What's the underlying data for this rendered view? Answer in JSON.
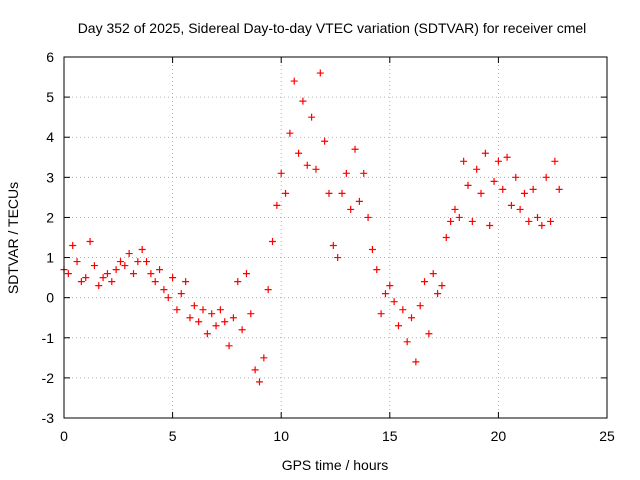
{
  "chart_data": {
    "type": "scatter",
    "title": "Day 352 of 2025, Sidereal Day-to-day VTEC variation (SDTVAR) for receiver cmel",
    "xlabel": "GPS time / hours",
    "ylabel": "SDTVAR / TECUs",
    "xlim": [
      0,
      25
    ],
    "ylim": [
      -3,
      6
    ],
    "xticks": [
      "0",
      "5",
      "10",
      "15",
      "20",
      "25"
    ],
    "yticks": [
      "-3",
      "-2",
      "-1",
      "0",
      "1",
      "2",
      "3",
      "4",
      "5",
      "6"
    ],
    "grid": true,
    "marker": "plus",
    "series_color": "#ff0000",
    "series": [
      {
        "name": "SDTVAR",
        "x": [
          0.0,
          0.2,
          0.4,
          0.6,
          0.8,
          1.0,
          1.2,
          1.4,
          1.6,
          1.8,
          2.0,
          2.2,
          2.4,
          2.6,
          2.8,
          3.0,
          3.2,
          3.4,
          3.6,
          3.8,
          4.0,
          4.2,
          4.4,
          4.6,
          4.8,
          5.0,
          5.2,
          5.4,
          5.6,
          5.8,
          6.0,
          6.2,
          6.4,
          6.6,
          6.8,
          7.0,
          7.2,
          7.4,
          7.6,
          7.8,
          8.0,
          8.2,
          8.4,
          8.6,
          8.8,
          9.0,
          9.2,
          9.4,
          9.6,
          9.8,
          10.0,
          10.2,
          10.4,
          10.6,
          10.8,
          11.0,
          11.2,
          11.4,
          11.6,
          11.8,
          12.0,
          12.2,
          12.4,
          12.6,
          12.8,
          13.0,
          13.2,
          13.4,
          13.6,
          13.8,
          14.0,
          14.2,
          14.4,
          14.6,
          14.8,
          15.0,
          15.2,
          15.4,
          15.6,
          15.8,
          16.0,
          16.2,
          16.4,
          16.6,
          16.8,
          17.0,
          17.2,
          17.4,
          17.6,
          17.8,
          18.0,
          18.2,
          18.4,
          18.6,
          18.8,
          19.0,
          19.2,
          19.4,
          19.6,
          19.8,
          20.0,
          20.2,
          20.4,
          20.6,
          20.8,
          21.0,
          21.2,
          21.4,
          21.6,
          21.8,
          22.0,
          22.2,
          22.4,
          22.6,
          22.8
        ],
        "y": [
          0.7,
          0.6,
          1.3,
          0.9,
          0.4,
          0.5,
          1.4,
          0.8,
          0.3,
          0.5,
          0.6,
          0.4,
          0.7,
          0.9,
          0.8,
          1.1,
          0.6,
          0.9,
          1.2,
          0.9,
          0.6,
          0.4,
          0.7,
          0.2,
          0.0,
          0.5,
          -0.3,
          0.1,
          0.4,
          -0.5,
          -0.2,
          -0.6,
          -0.3,
          -0.9,
          -0.4,
          -0.7,
          -0.3,
          -0.6,
          -1.2,
          -0.5,
          0.4,
          -0.8,
          0.6,
          -0.4,
          -1.8,
          -2.1,
          -1.5,
          0.2,
          1.4,
          2.3,
          3.1,
          2.6,
          4.1,
          5.4,
          3.6,
          4.9,
          3.3,
          4.5,
          3.2,
          5.6,
          3.9,
          2.6,
          1.3,
          1.0,
          2.6,
          3.1,
          2.2,
          3.7,
          2.4,
          3.1,
          2.0,
          1.2,
          0.7,
          -0.4,
          0.1,
          0.3,
          -0.1,
          -0.7,
          -0.3,
          -1.1,
          -0.5,
          -1.6,
          -0.2,
          0.4,
          -0.9,
          0.6,
          0.1,
          0.3,
          1.5,
          1.9,
          2.2,
          2.0,
          3.4,
          2.8,
          1.9,
          3.2,
          2.6,
          3.6,
          1.8,
          2.9,
          3.4,
          2.7,
          3.5,
          2.3,
          3.0,
          2.2,
          2.6,
          1.9,
          2.7,
          2.0,
          1.8,
          3.0,
          1.9,
          3.4,
          2.7
        ]
      }
    ]
  }
}
